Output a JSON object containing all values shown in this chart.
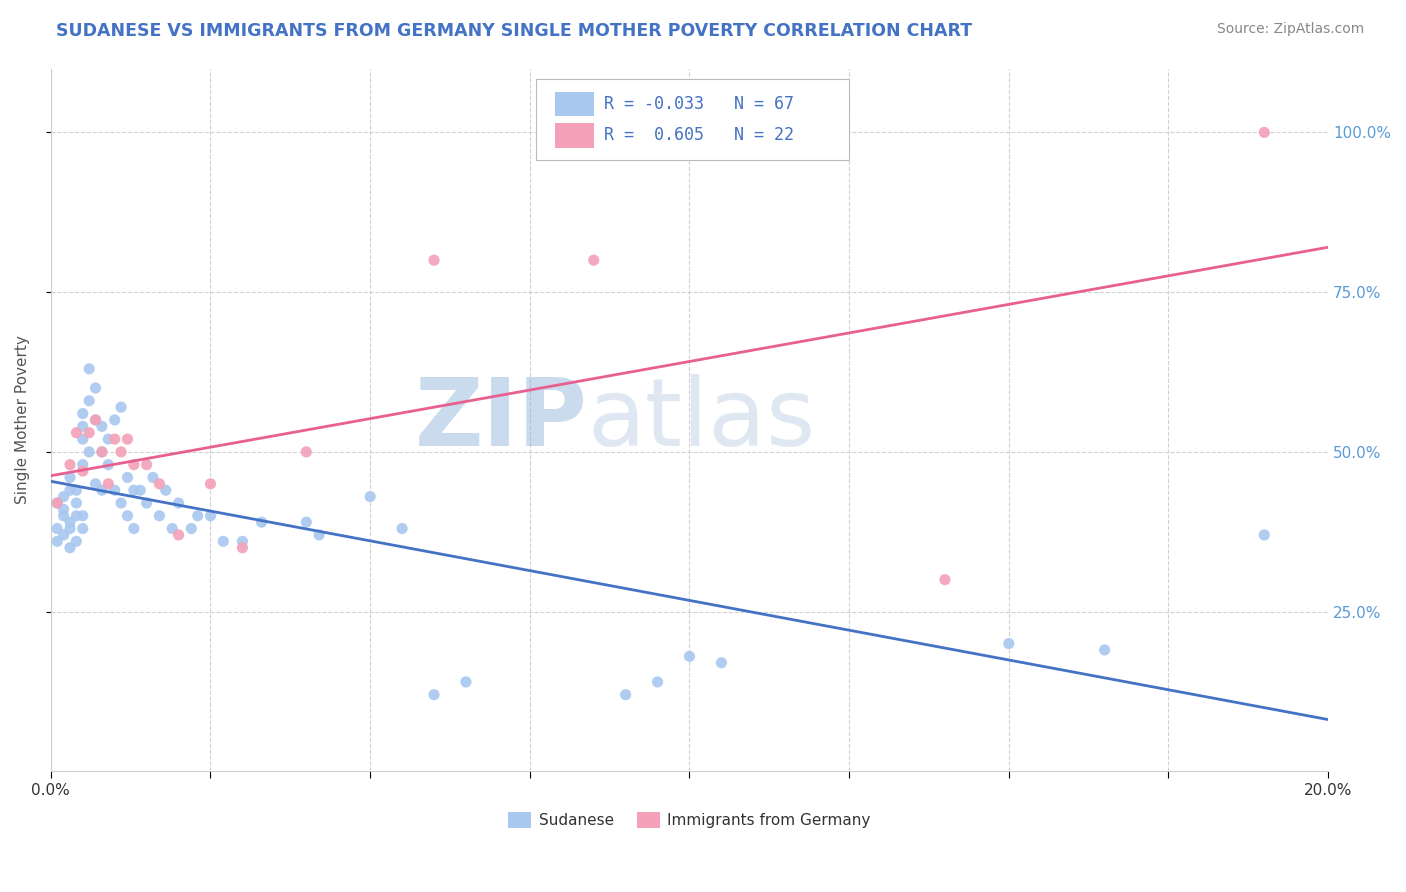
{
  "title": "SUDANESE VS IMMIGRANTS FROM GERMANY SINGLE MOTHER POVERTY CORRELATION CHART",
  "source": "Source: ZipAtlas.com",
  "ylabel_label": "Single Mother Poverty",
  "x_min": 0.0,
  "x_max": 0.2,
  "y_min": 0.0,
  "y_max": 1.1,
  "series1_name": "Sudanese",
  "series1_color": "#a8c8f0",
  "series1_line_color": "#4472c4",
  "series1_R": -0.033,
  "series1_N": 67,
  "series2_name": "Immigrants from Germany",
  "series2_color": "#f4a0b8",
  "series2_line_color": "#e86090",
  "series2_R": 0.605,
  "series2_N": 22,
  "watermark_zip": "ZIP",
  "watermark_atlas": "atlas",
  "ytick_vals": [
    0.25,
    0.5,
    0.75,
    1.0
  ],
  "ytick_labels": [
    "25.0%",
    "50.0%",
    "75.0%",
    "100.0%"
  ],
  "xtick_vals": [
    0.0,
    0.025,
    0.05,
    0.075,
    0.1,
    0.125,
    0.15,
    0.175,
    0.2
  ],
  "xtick_labels_show": [
    "0.0%",
    "",
    "",
    "",
    "",
    "",
    "",
    "",
    "20.0%"
  ],
  "blue_scatter_x": [
    0.001,
    0.001,
    0.001,
    0.002,
    0.002,
    0.002,
    0.002,
    0.003,
    0.003,
    0.003,
    0.003,
    0.003,
    0.004,
    0.004,
    0.004,
    0.004,
    0.005,
    0.005,
    0.005,
    0.005,
    0.005,
    0.005,
    0.006,
    0.006,
    0.006,
    0.007,
    0.007,
    0.007,
    0.008,
    0.008,
    0.008,
    0.009,
    0.009,
    0.01,
    0.01,
    0.011,
    0.011,
    0.012,
    0.012,
    0.013,
    0.013,
    0.014,
    0.015,
    0.016,
    0.017,
    0.018,
    0.019,
    0.02,
    0.022,
    0.023,
    0.025,
    0.027,
    0.03,
    0.033,
    0.04,
    0.042,
    0.05,
    0.055,
    0.06,
    0.065,
    0.09,
    0.095,
    0.1,
    0.105,
    0.15,
    0.165,
    0.19
  ],
  "blue_scatter_y": [
    0.38,
    0.42,
    0.36,
    0.37,
    0.4,
    0.43,
    0.41,
    0.39,
    0.44,
    0.46,
    0.38,
    0.35,
    0.4,
    0.42,
    0.36,
    0.44,
    0.52,
    0.54,
    0.56,
    0.48,
    0.38,
    0.4,
    0.5,
    0.58,
    0.63,
    0.55,
    0.6,
    0.45,
    0.5,
    0.54,
    0.44,
    0.48,
    0.52,
    0.55,
    0.44,
    0.57,
    0.42,
    0.46,
    0.4,
    0.44,
    0.38,
    0.44,
    0.42,
    0.46,
    0.4,
    0.44,
    0.38,
    0.42,
    0.38,
    0.4,
    0.4,
    0.36,
    0.36,
    0.39,
    0.39,
    0.37,
    0.43,
    0.38,
    0.12,
    0.14,
    0.12,
    0.14,
    0.18,
    0.17,
    0.2,
    0.19,
    0.37
  ],
  "pink_scatter_x": [
    0.001,
    0.003,
    0.004,
    0.005,
    0.006,
    0.007,
    0.008,
    0.009,
    0.01,
    0.011,
    0.012,
    0.013,
    0.015,
    0.017,
    0.02,
    0.025,
    0.03,
    0.04,
    0.06,
    0.085,
    0.14,
    0.19
  ],
  "pink_scatter_y": [
    0.42,
    0.48,
    0.53,
    0.47,
    0.53,
    0.55,
    0.5,
    0.45,
    0.52,
    0.5,
    0.52,
    0.48,
    0.48,
    0.45,
    0.37,
    0.45,
    0.35,
    0.5,
    0.8,
    0.8,
    0.3,
    1.0
  ]
}
